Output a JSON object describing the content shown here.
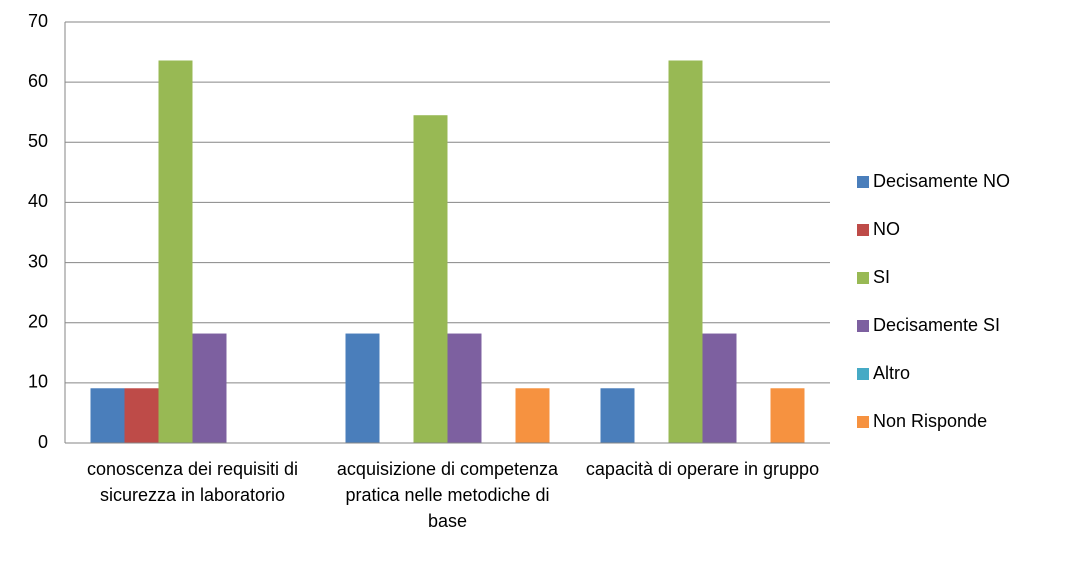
{
  "chart_data": {
    "type": "bar",
    "categories": [
      "conoscenza dei requisiti di sicurezza in laboratorio",
      "acquisizione di competenza pratica nelle metodiche di base",
      "capacità di operare in gruppo"
    ],
    "series": [
      {
        "name": "Decisamente NO",
        "color": "#4a7ebb",
        "values": [
          9.1,
          18.2,
          9.1
        ]
      },
      {
        "name": "NO",
        "color": "#be4b48",
        "values": [
          9.1,
          0,
          0
        ]
      },
      {
        "name": "SI",
        "color": "#98b954",
        "values": [
          63.6,
          54.5,
          63.6
        ]
      },
      {
        "name": "Decisamente SI",
        "color": "#7d60a0",
        "values": [
          18.2,
          18.2,
          18.2
        ]
      },
      {
        "name": "Altro",
        "color": "#46aac5",
        "values": [
          0,
          0,
          0
        ]
      },
      {
        "name": "Non Risponde",
        "color": "#f69240",
        "values": [
          0,
          9.1,
          9.1
        ]
      }
    ],
    "ylim": [
      0,
      70
    ],
    "yticks": [
      0,
      10,
      20,
      30,
      40,
      50,
      60,
      70
    ],
    "grid": true,
    "legend": "right"
  }
}
